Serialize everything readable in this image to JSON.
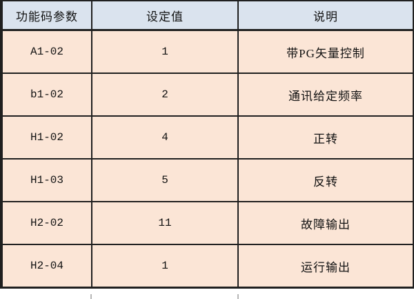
{
  "colors": {
    "header_bg": "#dae3ee",
    "row_bg": "#fbe5d6",
    "border": "#1f1f1f",
    "text": "#111111"
  },
  "table": {
    "headers": {
      "param": "功能码参数",
      "value": "设定值",
      "desc": "说明"
    },
    "rows": [
      {
        "code": "A1-02",
        "value": "1",
        "desc": "带PG矢量控制"
      },
      {
        "code": "b1-02",
        "value": "2",
        "desc": "通讯给定频率"
      },
      {
        "code": "H1-02",
        "value": "4",
        "desc": "正转"
      },
      {
        "code": "H1-03",
        "value": "5",
        "desc": "反转"
      },
      {
        "code": "H2-02",
        "value": "11",
        "desc": "故障输出"
      },
      {
        "code": "H2-04",
        "value": "1",
        "desc": "运行输出"
      }
    ]
  }
}
